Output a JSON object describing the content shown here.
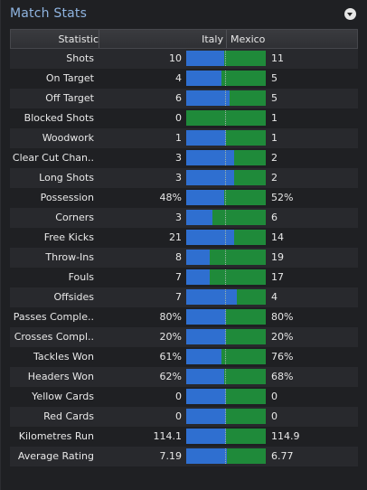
{
  "panel": {
    "title": "Match Stats",
    "collapse_icon": "chevron-down-icon"
  },
  "header": {
    "statistic": "Statistic",
    "home": "Italy",
    "away": "Mexico"
  },
  "colors": {
    "home": "#2f6fd0",
    "away": "#1f8a3a",
    "title": "#8fb4e0"
  },
  "rows": [
    {
      "label": "Shots",
      "home": "10",
      "away": "11",
      "home_share": 0.476
    },
    {
      "label": "On Target",
      "home": "4",
      "away": "5",
      "home_share": 0.444
    },
    {
      "label": "Off Target",
      "home": "6",
      "away": "5",
      "home_share": 0.545
    },
    {
      "label": "Blocked Shots",
      "home": "0",
      "away": "1",
      "home_share": 0.0
    },
    {
      "label": "Woodwork",
      "home": "1",
      "away": "1",
      "home_share": 0.5
    },
    {
      "label": "Clear Cut Chan..",
      "home": "3",
      "away": "2",
      "home_share": 0.6
    },
    {
      "label": "Long Shots",
      "home": "3",
      "away": "2",
      "home_share": 0.6
    },
    {
      "label": "Possession",
      "home": "48%",
      "away": "52%",
      "home_share": 0.48
    },
    {
      "label": "Corners",
      "home": "3",
      "away": "6",
      "home_share": 0.333
    },
    {
      "label": "Free Kicks",
      "home": "21",
      "away": "14",
      "home_share": 0.6
    },
    {
      "label": "Throw-Ins",
      "home": "8",
      "away": "19",
      "home_share": 0.296
    },
    {
      "label": "Fouls",
      "home": "7",
      "away": "17",
      "home_share": 0.292
    },
    {
      "label": "Offsides",
      "home": "7",
      "away": "4",
      "home_share": 0.636
    },
    {
      "label": "Passes Comple..",
      "home": "80%",
      "away": "80%",
      "home_share": 0.5
    },
    {
      "label": "Crosses Compl..",
      "home": "20%",
      "away": "20%",
      "home_share": 0.5
    },
    {
      "label": "Tackles Won",
      "home": "61%",
      "away": "76%",
      "home_share": 0.445
    },
    {
      "label": "Headers Won",
      "home": "62%",
      "away": "68%",
      "home_share": 0.477
    },
    {
      "label": "Yellow Cards",
      "home": "0",
      "away": "0",
      "home_share": 0.5
    },
    {
      "label": "Red Cards",
      "home": "0",
      "away": "0",
      "home_share": 0.5
    },
    {
      "label": "Kilometres Run",
      "home": "114.1",
      "away": "114.9",
      "home_share": 0.498
    },
    {
      "label": "Average Rating",
      "home": "7.19",
      "away": "6.77",
      "home_share": 0.515
    }
  ]
}
